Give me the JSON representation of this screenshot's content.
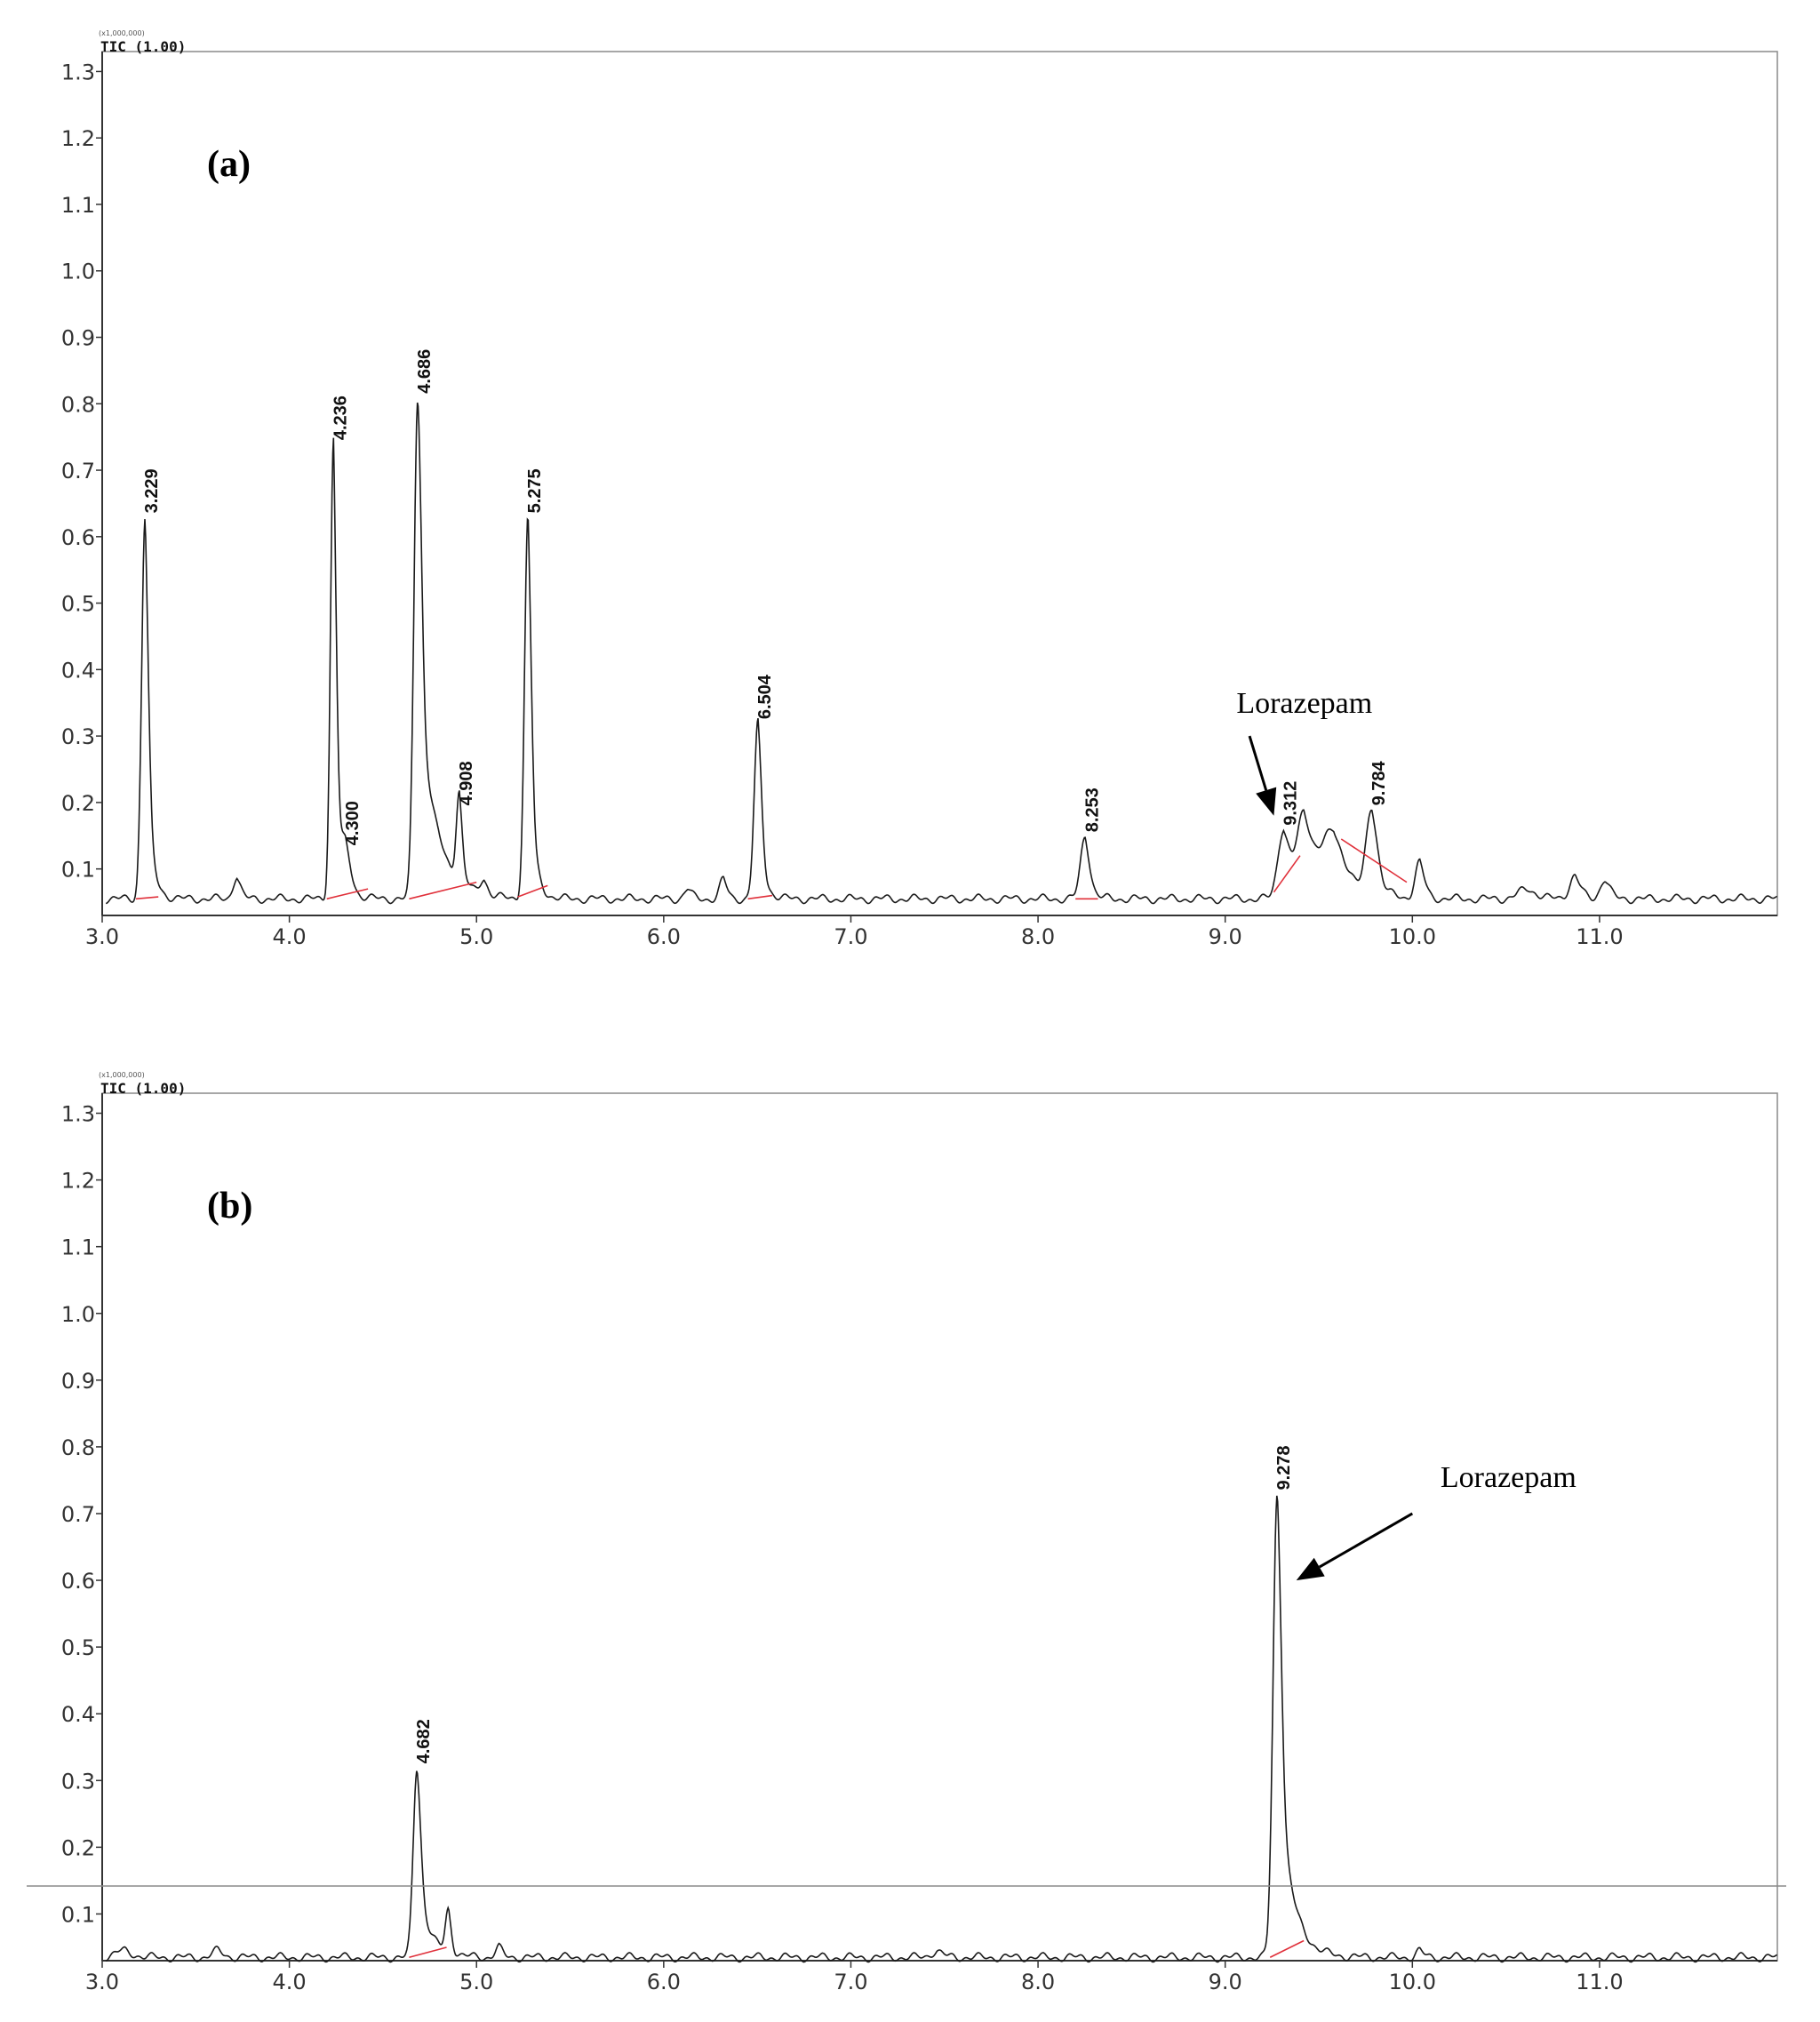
{
  "chart_data": [
    {
      "type": "line",
      "panel_label": "(a)",
      "scale_label": "(x1,000,000)",
      "signal_label": "TIC (1.00)",
      "xlim": [
        3.0,
        11.95
      ],
      "ylim": [
        0.03,
        1.33
      ],
      "x_ticks": [
        "3.0",
        "4.0",
        "5.0",
        "6.0",
        "7.0",
        "8.0",
        "9.0",
        "10.0",
        "11.0"
      ],
      "y_ticks": [
        "0.1",
        "0.2",
        "0.3",
        "0.4",
        "0.5",
        "0.6",
        "0.7",
        "0.8",
        "0.9",
        "1.0",
        "1.1",
        "1.2",
        "1.3"
      ],
      "baseline": 0.055,
      "peaks": [
        {
          "x": 3.229,
          "y": 0.63,
          "width": 0.018,
          "tail": 0.03,
          "label": "3.229"
        },
        {
          "x": 3.72,
          "y": 0.09,
          "width": 0.02,
          "tail": 0.02
        },
        {
          "x": 4.236,
          "y": 0.74,
          "width": 0.016,
          "tail": 0.02,
          "label": "4.236"
        },
        {
          "x": 4.3,
          "y": 0.13,
          "width": 0.03,
          "tail": 0.04,
          "label": "4.300"
        },
        {
          "x": 4.686,
          "y": 0.81,
          "width": 0.02,
          "tail": 0.09,
          "label": "4.686"
        },
        {
          "x": 4.908,
          "y": 0.19,
          "width": 0.016,
          "tail": 0.02,
          "label": "4.908"
        },
        {
          "x": 5.04,
          "y": 0.08,
          "width": 0.02,
          "tail": 0.02
        },
        {
          "x": 5.275,
          "y": 0.63,
          "width": 0.018,
          "tail": 0.03,
          "label": "5.275"
        },
        {
          "x": 6.13,
          "y": 0.07,
          "width": 0.02,
          "tail": 0.02
        },
        {
          "x": 6.32,
          "y": 0.085,
          "width": 0.02,
          "tail": 0.02
        },
        {
          "x": 6.504,
          "y": 0.32,
          "width": 0.02,
          "tail": 0.03,
          "label": "6.504"
        },
        {
          "x": 8.253,
          "y": 0.15,
          "width": 0.025,
          "tail": 0.03,
          "label": "8.253"
        },
        {
          "x": 9.312,
          "y": 0.16,
          "width": 0.03,
          "tail": 0.04,
          "label": "9.312"
        },
        {
          "x": 9.42,
          "y": 0.17,
          "width": 0.04,
          "tail": 0.05
        },
        {
          "x": 9.58,
          "y": 0.155,
          "width": 0.08,
          "tail": 0.06
        },
        {
          "x": 9.784,
          "y": 0.19,
          "width": 0.03,
          "tail": 0.05,
          "label": "9.784"
        },
        {
          "x": 10.04,
          "y": 0.11,
          "width": 0.025,
          "tail": 0.03
        },
        {
          "x": 10.62,
          "y": 0.07,
          "width": 0.05,
          "tail": 0.05
        },
        {
          "x": 10.87,
          "y": 0.09,
          "width": 0.03,
          "tail": 0.03
        },
        {
          "x": 11.03,
          "y": 0.085,
          "width": 0.025,
          "tail": 0.03
        }
      ],
      "integration_baselines": [
        {
          "x1": 3.18,
          "y1": 0.055,
          "x2": 3.3,
          "y2": 0.058
        },
        {
          "x1": 4.2,
          "y1": 0.055,
          "x2": 4.42,
          "y2": 0.07
        },
        {
          "x1": 4.64,
          "y1": 0.055,
          "x2": 5.0,
          "y2": 0.08
        },
        {
          "x1": 5.22,
          "y1": 0.058,
          "x2": 5.38,
          "y2": 0.075
        },
        {
          "x1": 6.45,
          "y1": 0.055,
          "x2": 6.58,
          "y2": 0.06
        },
        {
          "x1": 8.2,
          "y1": 0.055,
          "x2": 8.32,
          "y2": 0.055
        },
        {
          "x1": 9.26,
          "y1": 0.065,
          "x2": 9.4,
          "y2": 0.12
        },
        {
          "x1": 9.62,
          "y1": 0.145,
          "x2": 9.97,
          "y2": 0.08
        }
      ],
      "annotation": {
        "text": "Lorazepam",
        "text_x": 9.06,
        "text_y": 0.335,
        "arrow_from": [
          9.13,
          0.3
        ],
        "arrow_to": [
          9.26,
          0.18
        ]
      }
    },
    {
      "type": "line",
      "panel_label": "(b)",
      "scale_label": "(x1,000,000)",
      "signal_label": "TIC (1.00)",
      "xlim": [
        3.0,
        11.95
      ],
      "ylim": [
        0.03,
        1.33
      ],
      "x_ticks": [
        "3.0",
        "4.0",
        "5.0",
        "6.0",
        "7.0",
        "8.0",
        "9.0",
        "10.0",
        "11.0"
      ],
      "y_ticks": [
        "0.1",
        "0.2",
        "0.3",
        "0.4",
        "0.5",
        "0.6",
        "0.7",
        "0.8",
        "0.9",
        "1.0",
        "1.1",
        "1.2",
        "1.3"
      ],
      "baseline": 0.035,
      "peaks": [
        {
          "x": 3.12,
          "y": 0.045,
          "width": 0.05,
          "tail": 0.04
        },
        {
          "x": 3.62,
          "y": 0.045,
          "width": 0.03,
          "tail": 0.03
        },
        {
          "x": 4.682,
          "y": 0.32,
          "width": 0.02,
          "tail": 0.06,
          "label": "4.682"
        },
        {
          "x": 4.85,
          "y": 0.1,
          "width": 0.016,
          "tail": 0.02
        },
        {
          "x": 5.12,
          "y": 0.05,
          "width": 0.02,
          "tail": 0.02
        },
        {
          "x": 7.46,
          "y": 0.045,
          "width": 0.03,
          "tail": 0.03
        },
        {
          "x": 9.278,
          "y": 0.73,
          "width": 0.022,
          "tail": 0.07,
          "label": "9.278"
        },
        {
          "x": 10.04,
          "y": 0.045,
          "width": 0.02,
          "tail": 0.02
        }
      ],
      "integration_baselines": [
        {
          "x1": 4.64,
          "y1": 0.035,
          "x2": 4.84,
          "y2": 0.05
        },
        {
          "x1": 9.24,
          "y1": 0.035,
          "x2": 9.42,
          "y2": 0.06
        }
      ],
      "annotation": {
        "text": "Lorazepam",
        "text_x": 10.15,
        "text_y": 0.74,
        "arrow_from": [
          10.0,
          0.7
        ],
        "arrow_to": [
          9.38,
          0.6
        ]
      }
    }
  ],
  "colors": {
    "trace": "#1a1a1a",
    "integration": "#e0303a",
    "frame": "#8a8a8a"
  }
}
